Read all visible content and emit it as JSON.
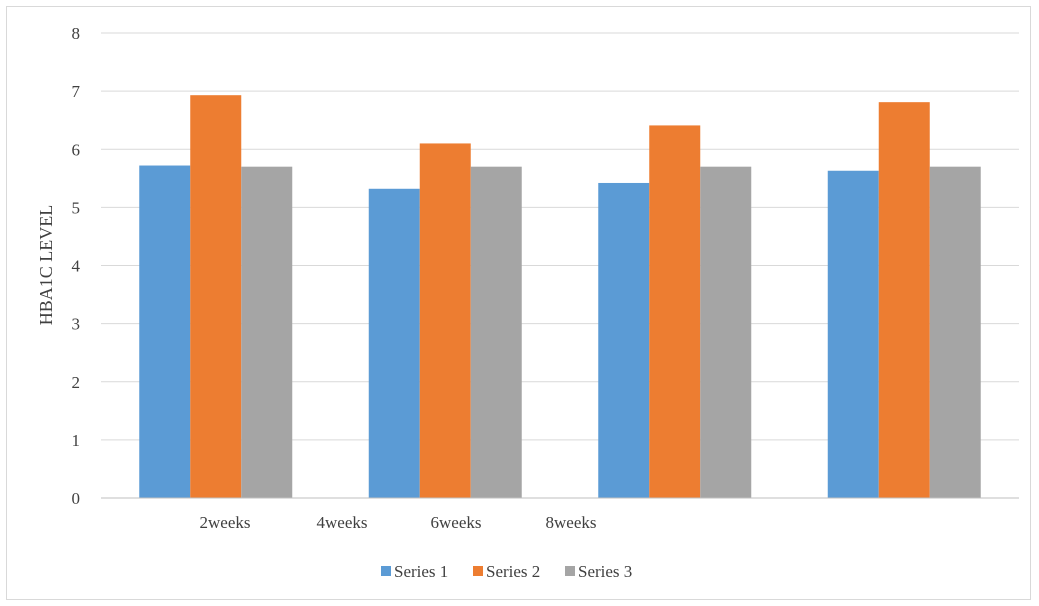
{
  "chart_data": {
    "type": "bar",
    "title": "",
    "xlabel": "",
    "ylabel": "HBA1C LEVEL",
    "ylim": [
      0,
      8
    ],
    "yticks": [
      0,
      1,
      2,
      3,
      4,
      5,
      6,
      7,
      8
    ],
    "grid": true,
    "legend_position": "bottom",
    "categories": [
      "2weeks",
      "4weeks",
      "6weeks",
      "8weeks"
    ],
    "series": [
      {
        "name": "Series 1",
        "color": "#5b9bd5",
        "values": [
          5.72,
          5.32,
          5.42,
          5.63
        ]
      },
      {
        "name": "Series 2",
        "color": "#ed7d31",
        "values": [
          6.93,
          6.1,
          6.41,
          6.81
        ]
      },
      {
        "name": "Series 3",
        "color": "#a5a5a5",
        "values": [
          5.7,
          5.7,
          5.7,
          5.7
        ]
      }
    ]
  }
}
